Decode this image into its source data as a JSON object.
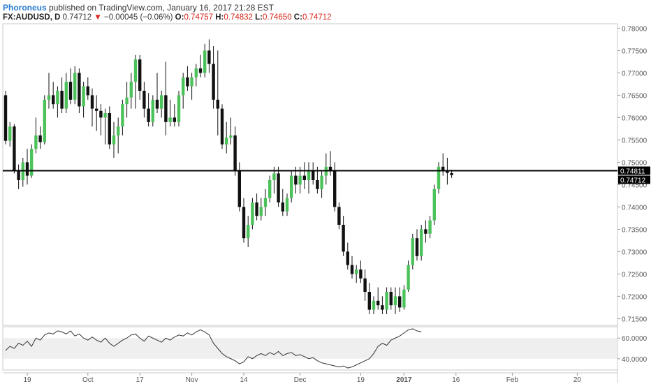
{
  "header": {
    "publisher": "Phoroneus",
    "published_text": "published on TradingView.com, January 16, 2017 21:28 EST",
    "symbol": "FX:AUDUSD, D",
    "last": "0.74712",
    "change_arrow": "▼",
    "change": "−0.00045 (−0.06%)",
    "open_label": "O:",
    "open": "0.74757",
    "high_label": "H:",
    "high": "0.74832",
    "low_label": "L:",
    "low": "0.74650",
    "close_label": "C:",
    "close": "0.74712"
  },
  "colors": {
    "up": "#4cc25b",
    "down": "#111111",
    "line": "#000000",
    "price_tag": "#000000",
    "rsi_band": "#efefef"
  },
  "chart_data": [
    {
      "type": "candlestick",
      "title": "FX:AUDUSD, D",
      "ylim": [
        0.7135,
        0.781
      ],
      "y_ticks": [
        "0.78000",
        "0.77500",
        "0.77000",
        "0.76500",
        "0.76000",
        "0.75500",
        "0.75000",
        "0.74500",
        "0.74000",
        "0.73500",
        "0.73000",
        "0.72500",
        "0.72000",
        "0.71500"
      ],
      "x_ticks": [
        "19",
        "Oct",
        "17",
        "Nov",
        "14",
        "Dec",
        "19",
        "2017",
        "16",
        "Feb",
        "20"
      ],
      "x_tick_index": [
        5,
        19,
        31,
        43,
        55,
        68,
        82,
        92,
        104,
        117,
        132
      ],
      "horizontal_line": 0.74811,
      "price_labels": [
        "0.74811",
        "0.74712"
      ],
      "candles": [
        {
          "o": 0.765,
          "h": 0.766,
          "l": 0.754,
          "c": 0.7548
        },
        {
          "o": 0.7548,
          "h": 0.759,
          "l": 0.7535,
          "c": 0.758
        },
        {
          "o": 0.758,
          "h": 0.7585,
          "l": 0.7475,
          "c": 0.748
        },
        {
          "o": 0.748,
          "h": 0.7495,
          "l": 0.744,
          "c": 0.746
        },
        {
          "o": 0.746,
          "h": 0.751,
          "l": 0.7445,
          "c": 0.75
        },
        {
          "o": 0.75,
          "h": 0.753,
          "l": 0.745,
          "c": 0.747
        },
        {
          "o": 0.747,
          "h": 0.754,
          "l": 0.7465,
          "c": 0.753
        },
        {
          "o": 0.753,
          "h": 0.76,
          "l": 0.752,
          "c": 0.756
        },
        {
          "o": 0.756,
          "h": 0.758,
          "l": 0.753,
          "c": 0.7545
        },
        {
          "o": 0.7545,
          "h": 0.765,
          "l": 0.754,
          "c": 0.764
        },
        {
          "o": 0.764,
          "h": 0.77,
          "l": 0.762,
          "c": 0.765
        },
        {
          "o": 0.765,
          "h": 0.768,
          "l": 0.762,
          "c": 0.763
        },
        {
          "o": 0.763,
          "h": 0.767,
          "l": 0.76,
          "c": 0.766
        },
        {
          "o": 0.766,
          "h": 0.769,
          "l": 0.761,
          "c": 0.762
        },
        {
          "o": 0.762,
          "h": 0.77,
          "l": 0.761,
          "c": 0.768
        },
        {
          "o": 0.768,
          "h": 0.771,
          "l": 0.763,
          "c": 0.764
        },
        {
          "o": 0.764,
          "h": 0.7715,
          "l": 0.763,
          "c": 0.77
        },
        {
          "o": 0.77,
          "h": 0.771,
          "l": 0.761,
          "c": 0.7625
        },
        {
          "o": 0.7625,
          "h": 0.768,
          "l": 0.76,
          "c": 0.767
        },
        {
          "o": 0.767,
          "h": 0.769,
          "l": 0.764,
          "c": 0.765
        },
        {
          "o": 0.765,
          "h": 0.7665,
          "l": 0.758,
          "c": 0.762
        },
        {
          "o": 0.762,
          "h": 0.765,
          "l": 0.757,
          "c": 0.7615
        },
        {
          "o": 0.7615,
          "h": 0.763,
          "l": 0.756,
          "c": 0.76
        },
        {
          "o": 0.76,
          "h": 0.762,
          "l": 0.754,
          "c": 0.761
        },
        {
          "o": 0.761,
          "h": 0.7625,
          "l": 0.753,
          "c": 0.754
        },
        {
          "o": 0.754,
          "h": 0.759,
          "l": 0.751,
          "c": 0.756
        },
        {
          "o": 0.756,
          "h": 0.76,
          "l": 0.752,
          "c": 0.758
        },
        {
          "o": 0.758,
          "h": 0.764,
          "l": 0.756,
          "c": 0.763
        },
        {
          "o": 0.763,
          "h": 0.768,
          "l": 0.76,
          "c": 0.7645
        },
        {
          "o": 0.7645,
          "h": 0.77,
          "l": 0.762,
          "c": 0.768
        },
        {
          "o": 0.768,
          "h": 0.774,
          "l": 0.762,
          "c": 0.773
        },
        {
          "o": 0.773,
          "h": 0.774,
          "l": 0.764,
          "c": 0.766
        },
        {
          "o": 0.766,
          "h": 0.768,
          "l": 0.76,
          "c": 0.762
        },
        {
          "o": 0.762,
          "h": 0.7655,
          "l": 0.758,
          "c": 0.759
        },
        {
          "o": 0.759,
          "h": 0.765,
          "l": 0.758,
          "c": 0.764
        },
        {
          "o": 0.764,
          "h": 0.77,
          "l": 0.761,
          "c": 0.762
        },
        {
          "o": 0.762,
          "h": 0.766,
          "l": 0.76,
          "c": 0.765
        },
        {
          "o": 0.765,
          "h": 0.7725,
          "l": 0.756,
          "c": 0.759
        },
        {
          "o": 0.759,
          "h": 0.764,
          "l": 0.758,
          "c": 0.76
        },
        {
          "o": 0.76,
          "h": 0.763,
          "l": 0.758,
          "c": 0.759
        },
        {
          "o": 0.759,
          "h": 0.766,
          "l": 0.758,
          "c": 0.765
        },
        {
          "o": 0.765,
          "h": 0.77,
          "l": 0.762,
          "c": 0.769
        },
        {
          "o": 0.769,
          "h": 0.7715,
          "l": 0.766,
          "c": 0.767
        },
        {
          "o": 0.767,
          "h": 0.77,
          "l": 0.764,
          "c": 0.769
        },
        {
          "o": 0.769,
          "h": 0.772,
          "l": 0.767,
          "c": 0.771
        },
        {
          "o": 0.771,
          "h": 0.774,
          "l": 0.769,
          "c": 0.77
        },
        {
          "o": 0.77,
          "h": 0.7765,
          "l": 0.769,
          "c": 0.775
        },
        {
          "o": 0.775,
          "h": 0.7775,
          "l": 0.77,
          "c": 0.772
        },
        {
          "o": 0.772,
          "h": 0.776,
          "l": 0.762,
          "c": 0.764
        },
        {
          "o": 0.764,
          "h": 0.775,
          "l": 0.756,
          "c": 0.762
        },
        {
          "o": 0.762,
          "h": 0.763,
          "l": 0.753,
          "c": 0.754
        },
        {
          "o": 0.754,
          "h": 0.759,
          "l": 0.752,
          "c": 0.7555
        },
        {
          "o": 0.7555,
          "h": 0.76,
          "l": 0.754,
          "c": 0.756
        },
        {
          "o": 0.756,
          "h": 0.758,
          "l": 0.747,
          "c": 0.748
        },
        {
          "o": 0.748,
          "h": 0.75,
          "l": 0.739,
          "c": 0.74
        },
        {
          "o": 0.74,
          "h": 0.742,
          "l": 0.732,
          "c": 0.733
        },
        {
          "o": 0.733,
          "h": 0.738,
          "l": 0.731,
          "c": 0.736
        },
        {
          "o": 0.736,
          "h": 0.742,
          "l": 0.735,
          "c": 0.741
        },
        {
          "o": 0.741,
          "h": 0.743,
          "l": 0.737,
          "c": 0.738
        },
        {
          "o": 0.738,
          "h": 0.742,
          "l": 0.737,
          "c": 0.74
        },
        {
          "o": 0.74,
          "h": 0.744,
          "l": 0.738,
          "c": 0.742
        },
        {
          "o": 0.742,
          "h": 0.747,
          "l": 0.741,
          "c": 0.746
        },
        {
          "o": 0.746,
          "h": 0.749,
          "l": 0.743,
          "c": 0.7475
        },
        {
          "o": 0.7475,
          "h": 0.749,
          "l": 0.74,
          "c": 0.741
        },
        {
          "o": 0.741,
          "h": 0.744,
          "l": 0.738,
          "c": 0.739
        },
        {
          "o": 0.739,
          "h": 0.743,
          "l": 0.738,
          "c": 0.742
        },
        {
          "o": 0.742,
          "h": 0.748,
          "l": 0.741,
          "c": 0.747
        },
        {
          "o": 0.747,
          "h": 0.749,
          "l": 0.743,
          "c": 0.745
        },
        {
          "o": 0.745,
          "h": 0.749,
          "l": 0.743,
          "c": 0.747
        },
        {
          "o": 0.747,
          "h": 0.75,
          "l": 0.744,
          "c": 0.746
        },
        {
          "o": 0.746,
          "h": 0.75,
          "l": 0.743,
          "c": 0.748
        },
        {
          "o": 0.748,
          "h": 0.75,
          "l": 0.745,
          "c": 0.746
        },
        {
          "o": 0.746,
          "h": 0.749,
          "l": 0.743,
          "c": 0.744
        },
        {
          "o": 0.744,
          "h": 0.748,
          "l": 0.742,
          "c": 0.747
        },
        {
          "o": 0.747,
          "h": 0.752,
          "l": 0.745,
          "c": 0.749
        },
        {
          "o": 0.749,
          "h": 0.7525,
          "l": 0.747,
          "c": 0.748
        },
        {
          "o": 0.748,
          "h": 0.75,
          "l": 0.739,
          "c": 0.74
        },
        {
          "o": 0.74,
          "h": 0.741,
          "l": 0.735,
          "c": 0.736
        },
        {
          "o": 0.736,
          "h": 0.738,
          "l": 0.729,
          "c": 0.73
        },
        {
          "o": 0.73,
          "h": 0.732,
          "l": 0.726,
          "c": 0.727
        },
        {
          "o": 0.727,
          "h": 0.729,
          "l": 0.724,
          "c": 0.725
        },
        {
          "o": 0.725,
          "h": 0.727,
          "l": 0.723,
          "c": 0.726
        },
        {
          "o": 0.726,
          "h": 0.728,
          "l": 0.723,
          "c": 0.724
        },
        {
          "o": 0.724,
          "h": 0.726,
          "l": 0.719,
          "c": 0.721
        },
        {
          "o": 0.721,
          "h": 0.723,
          "l": 0.716,
          "c": 0.717
        },
        {
          "o": 0.717,
          "h": 0.72,
          "l": 0.716,
          "c": 0.719
        },
        {
          "o": 0.719,
          "h": 0.722,
          "l": 0.717,
          "c": 0.718
        },
        {
          "o": 0.718,
          "h": 0.72,
          "l": 0.716,
          "c": 0.717
        },
        {
          "o": 0.717,
          "h": 0.722,
          "l": 0.716,
          "c": 0.721
        },
        {
          "o": 0.721,
          "h": 0.722,
          "l": 0.717,
          "c": 0.718
        },
        {
          "o": 0.718,
          "h": 0.722,
          "l": 0.716,
          "c": 0.72
        },
        {
          "o": 0.72,
          "h": 0.722,
          "l": 0.7165,
          "c": 0.7175
        },
        {
          "o": 0.7175,
          "h": 0.7225,
          "l": 0.717,
          "c": 0.7215
        },
        {
          "o": 0.7215,
          "h": 0.728,
          "l": 0.721,
          "c": 0.727
        },
        {
          "o": 0.727,
          "h": 0.734,
          "l": 0.726,
          "c": 0.733
        },
        {
          "o": 0.733,
          "h": 0.735,
          "l": 0.728,
          "c": 0.729
        },
        {
          "o": 0.729,
          "h": 0.736,
          "l": 0.728,
          "c": 0.735
        },
        {
          "o": 0.735,
          "h": 0.737,
          "l": 0.732,
          "c": 0.734
        },
        {
          "o": 0.734,
          "h": 0.738,
          "l": 0.733,
          "c": 0.737
        },
        {
          "o": 0.737,
          "h": 0.745,
          "l": 0.736,
          "c": 0.744
        },
        {
          "o": 0.744,
          "h": 0.75,
          "l": 0.743,
          "c": 0.749
        },
        {
          "o": 0.749,
          "h": 0.752,
          "l": 0.747,
          "c": 0.748
        },
        {
          "o": 0.748,
          "h": 0.751,
          "l": 0.745,
          "c": 0.7476
        },
        {
          "o": 0.74757,
          "h": 0.74832,
          "l": 0.7465,
          "c": 0.74712
        }
      ]
    },
    {
      "type": "line",
      "ylim": [
        29,
        71
      ],
      "y_ticks": [
        "60.0000",
        "40.0000"
      ],
      "values": [
        48,
        52,
        50,
        55,
        53,
        57,
        52,
        60,
        58,
        63,
        65,
        64,
        67,
        66,
        64,
        67,
        62,
        64,
        60,
        58,
        61,
        58,
        56,
        60,
        55,
        52,
        55,
        58,
        60,
        63,
        64,
        60,
        57,
        62,
        60,
        58,
        56,
        60,
        58,
        61,
        63,
        62,
        65,
        63,
        66,
        68,
        66,
        63,
        55,
        50,
        45,
        42,
        40,
        38,
        35,
        37,
        42,
        40,
        43,
        45,
        43,
        46,
        44,
        47,
        43,
        45,
        46,
        43,
        44,
        42,
        40,
        41,
        38,
        36,
        35,
        34,
        33,
        32,
        33,
        31,
        32,
        34,
        36,
        38,
        40,
        45,
        52,
        55,
        53,
        58,
        60,
        62,
        65,
        68,
        69,
        67,
        66
      ]
    }
  ]
}
